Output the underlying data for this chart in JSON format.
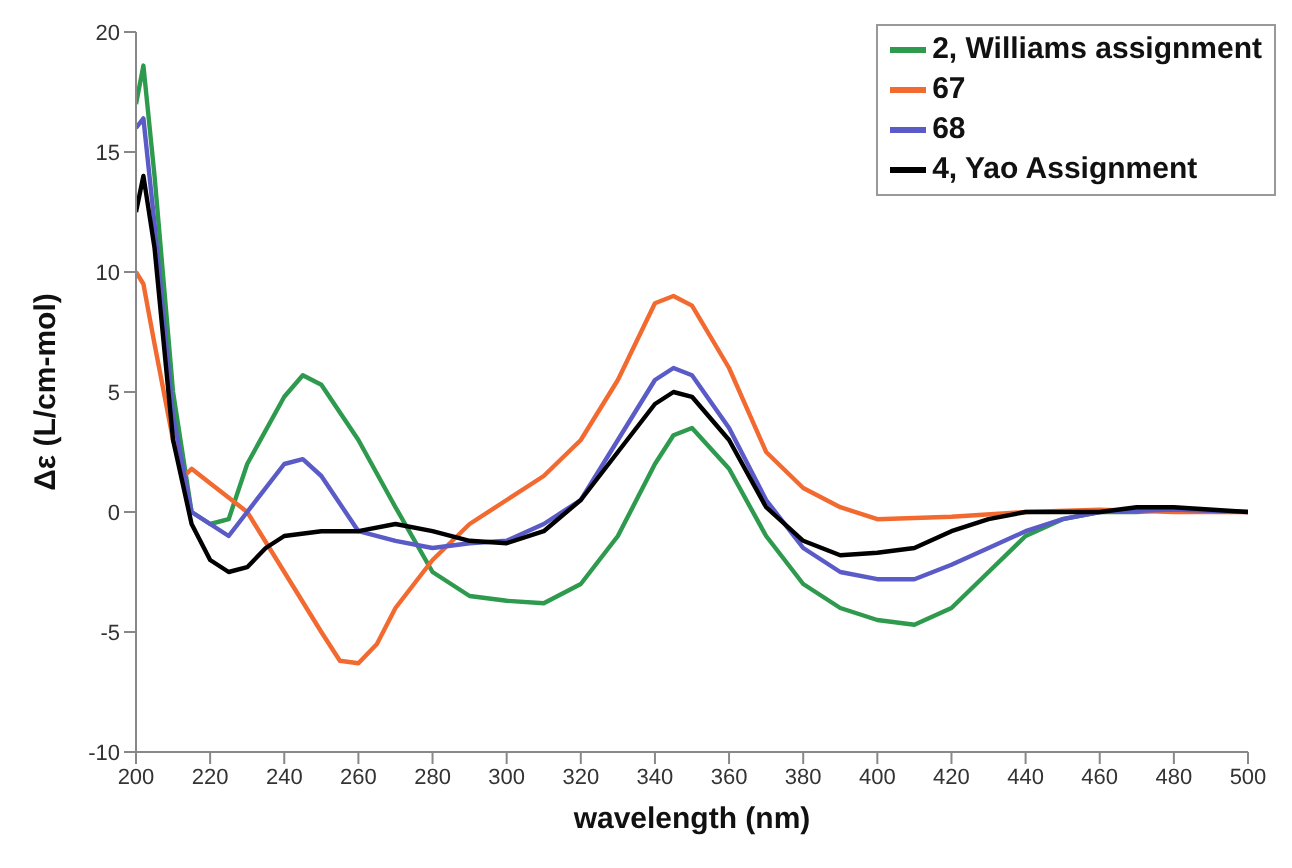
{
  "chart_data": {
    "type": "line",
    "xlabel": "wavelength (nm)",
    "ylabel": "Δε (L/cm-mol)",
    "xlim": [
      200,
      500
    ],
    "xticks": [
      200,
      220,
      240,
      260,
      280,
      300,
      320,
      340,
      360,
      380,
      400,
      420,
      440,
      460,
      480,
      500
    ],
    "ylim": [
      -10,
      20
    ],
    "yticks": [
      -10,
      -5,
      0,
      5,
      10,
      15,
      20
    ],
    "grid": false,
    "legend": "top right",
    "marker": "none",
    "line_style": "solid",
    "series": [
      {
        "name": "2, Williams assignment",
        "color": "#2e9a4e",
        "x": [
          200,
          202,
          205,
          210,
          215,
          220,
          225,
          230,
          240,
          245,
          250,
          260,
          270,
          280,
          290,
          300,
          310,
          320,
          330,
          340,
          345,
          350,
          360,
          370,
          380,
          390,
          400,
          410,
          420,
          430,
          440,
          450,
          460,
          470,
          480
        ],
        "values": [
          17,
          18.6,
          14,
          5,
          0,
          -0.5,
          -0.3,
          2,
          4.8,
          5.7,
          5.3,
          3,
          0.2,
          -2.5,
          -3.5,
          -3.7,
          -3.8,
          -3,
          -1,
          2,
          3.2,
          3.5,
          1.8,
          -1,
          -3,
          -4,
          -4.5,
          -4.7,
          -4,
          -2.5,
          -1,
          -0.3,
          0,
          0,
          0.1
        ]
      },
      {
        "name": "67",
        "color": "#f26a30",
        "x": [
          200,
          202,
          205,
          210,
          213,
          215,
          220,
          230,
          240,
          250,
          255,
          260,
          265,
          270,
          280,
          290,
          300,
          310,
          320,
          330,
          340,
          345,
          350,
          360,
          370,
          380,
          390,
          400,
          420,
          440,
          460,
          480,
          500
        ],
        "values": [
          10,
          9.5,
          7,
          3,
          1.5,
          1.8,
          1.2,
          0,
          -2.5,
          -5,
          -6.2,
          -6.3,
          -5.5,
          -4,
          -2,
          -0.5,
          0.5,
          1.5,
          3,
          5.5,
          8.7,
          9,
          8.6,
          6,
          2.5,
          1,
          0.2,
          -0.3,
          -0.2,
          0,
          0.1,
          0,
          0
        ]
      },
      {
        "name": "68",
        "color": "#5b5bc8",
        "x": [
          200,
          202,
          205,
          210,
          215,
          220,
          225,
          230,
          240,
          245,
          250,
          260,
          270,
          280,
          290,
          300,
          310,
          320,
          330,
          340,
          345,
          350,
          360,
          370,
          380,
          390,
          400,
          410,
          420,
          430,
          440,
          450,
          460,
          480,
          500
        ],
        "values": [
          16,
          16.4,
          12,
          4,
          0,
          -0.5,
          -1,
          0,
          2,
          2.2,
          1.5,
          -0.8,
          -1.2,
          -1.5,
          -1.3,
          -1.2,
          -0.5,
          0.5,
          3,
          5.5,
          6,
          5.7,
          3.5,
          0.5,
          -1.5,
          -2.5,
          -2.8,
          -2.8,
          -2.2,
          -1.5,
          -0.8,
          -0.3,
          0,
          0.1,
          0
        ]
      },
      {
        "name": "4, Yao Assignment",
        "color": "#000000",
        "x": [
          200,
          202,
          205,
          210,
          215,
          220,
          225,
          230,
          235,
          240,
          250,
          260,
          270,
          280,
          290,
          300,
          310,
          320,
          330,
          340,
          345,
          350,
          360,
          370,
          380,
          390,
          400,
          410,
          420,
          430,
          440,
          460,
          470,
          480,
          500
        ],
        "values": [
          12.5,
          14,
          11,
          3,
          -0.5,
          -2,
          -2.5,
          -2.3,
          -1.5,
          -1,
          -0.8,
          -0.8,
          -0.5,
          -0.8,
          -1.2,
          -1.3,
          -0.8,
          0.5,
          2.5,
          4.5,
          5,
          4.8,
          3,
          0.2,
          -1.2,
          -1.8,
          -1.7,
          -1.5,
          -0.8,
          -0.3,
          0,
          0,
          0.2,
          0.2,
          0
        ]
      }
    ]
  }
}
